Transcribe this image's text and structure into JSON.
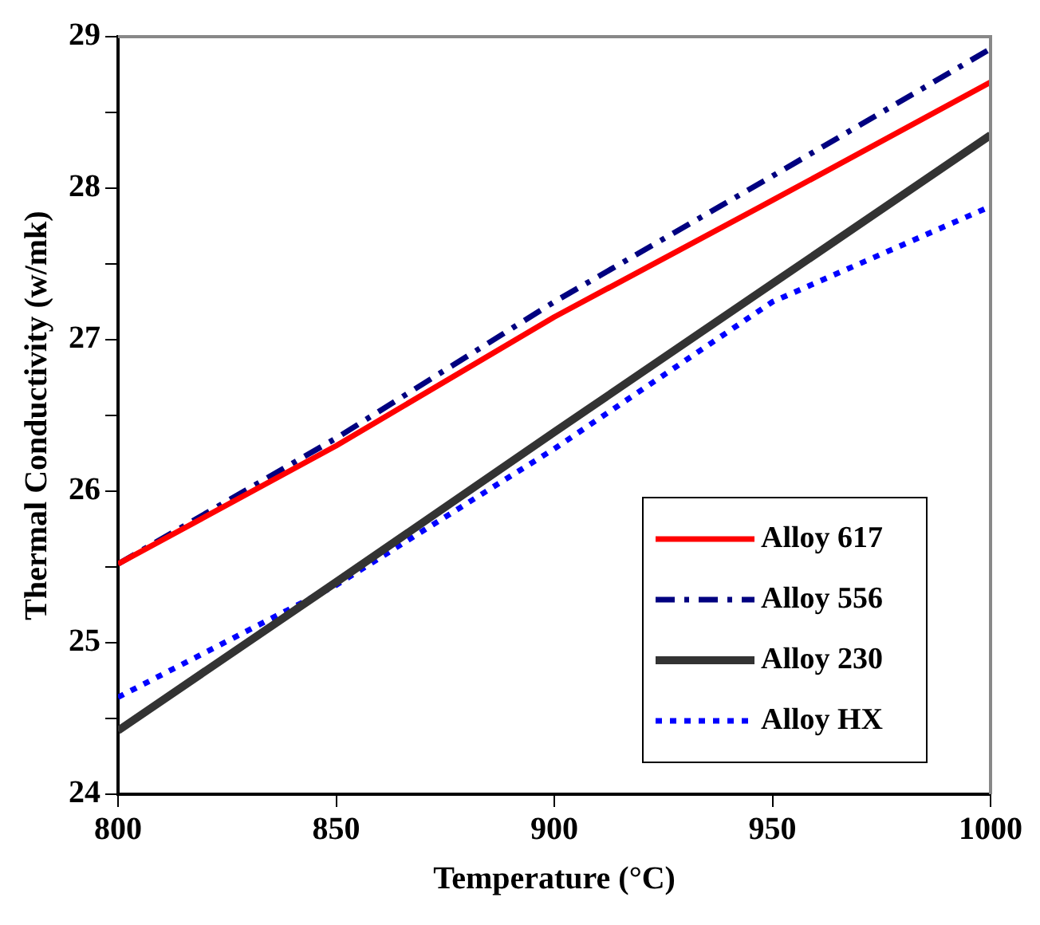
{
  "chart_data": {
    "type": "line",
    "xlabel": "Temperature (°C)",
    "ylabel": "Thermal Conductivity (w/mk)",
    "x": [
      800,
      850,
      900,
      950,
      1000
    ],
    "series": [
      {
        "name": "Alloy 617",
        "color": "#ff0000",
        "line_style": "solid",
        "values": [
          25.52,
          26.3,
          27.15,
          27.92,
          28.7
        ]
      },
      {
        "name": "Alloy 556",
        "color": "#000080",
        "line_style": "dashdot",
        "values": [
          25.52,
          26.35,
          27.25,
          28.08,
          28.92
        ]
      },
      {
        "name": "Alloy 230",
        "color": "#333333",
        "line_style": "solid",
        "values": [
          24.42,
          25.4,
          26.39,
          27.37,
          28.35
        ]
      },
      {
        "name": "Alloy HX",
        "color": "#0000ff",
        "line_style": "dotted",
        "values": [
          24.64,
          25.38,
          26.28,
          27.25,
          27.88
        ]
      }
    ],
    "xlim": [
      800,
      1000
    ],
    "xticks": [
      800,
      850,
      900,
      950,
      1000
    ],
    "ylim": [
      24,
      29
    ],
    "yticks": [
      24,
      {
        "value": 24.5,
        "label": null
      },
      25,
      {
        "value": 25.5,
        "label": null
      },
      26,
      {
        "value": 26.5,
        "label": null
      },
      27,
      {
        "value": 27.5,
        "label": null
      },
      28,
      {
        "value": 28.5,
        "label": null
      },
      29
    ],
    "grid": false,
    "legend": "bottom right",
    "marker": "none"
  }
}
